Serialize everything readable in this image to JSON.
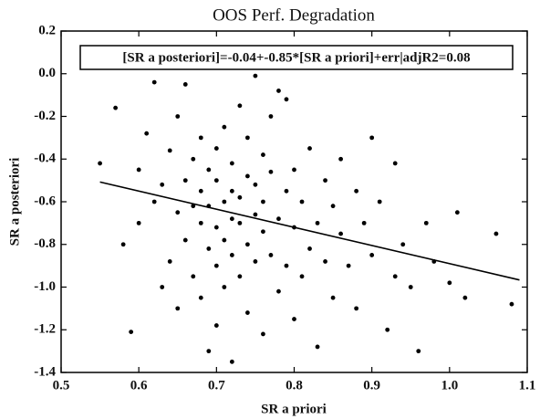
{
  "chart_data": {
    "type": "scatter",
    "title": "OOS Perf. Degradation",
    "xlabel": "SR a priori",
    "ylabel": "SR a posteriori",
    "annotation": "[SR a posteriori]=-0.04+-0.85*[SR a priori]+err|adjR2=0.08",
    "color": "#000000",
    "x": [
      0.55,
      0.57,
      0.58,
      0.59,
      0.6,
      0.6,
      0.61,
      0.62,
      0.62,
      0.63,
      0.63,
      0.64,
      0.64,
      0.65,
      0.65,
      0.65,
      0.66,
      0.66,
      0.66,
      0.67,
      0.67,
      0.67,
      0.68,
      0.68,
      0.68,
      0.68,
      0.69,
      0.69,
      0.69,
      0.69,
      0.7,
      0.7,
      0.7,
      0.7,
      0.7,
      0.71,
      0.71,
      0.71,
      0.71,
      0.72,
      0.72,
      0.72,
      0.72,
      0.72,
      0.73,
      0.73,
      0.73,
      0.73,
      0.74,
      0.74,
      0.74,
      0.74,
      0.75,
      0.75,
      0.75,
      0.75,
      0.76,
      0.76,
      0.76,
      0.76,
      0.77,
      0.77,
      0.77,
      0.78,
      0.78,
      0.78,
      0.79,
      0.79,
      0.79,
      0.8,
      0.8,
      0.8,
      0.81,
      0.81,
      0.82,
      0.82,
      0.83,
      0.83,
      0.84,
      0.84,
      0.85,
      0.85,
      0.86,
      0.86,
      0.87,
      0.88,
      0.88,
      0.89,
      0.9,
      0.9,
      0.91,
      0.92,
      0.93,
      0.93,
      0.94,
      0.95,
      0.96,
      0.97,
      0.98,
      1.0,
      1.01,
      1.02,
      1.06,
      1.08
    ],
    "values": [
      -0.42,
      -0.16,
      -0.8,
      -1.21,
      -0.45,
      -0.7,
      -0.28,
      -0.04,
      -0.6,
      -1.0,
      -0.52,
      -0.36,
      -0.88,
      -0.65,
      -0.2,
      -1.1,
      -0.5,
      -0.78,
      -0.05,
      -0.62,
      -0.95,
      -0.4,
      -0.7,
      -0.3,
      -1.05,
      -0.55,
      -0.82,
      -0.45,
      -1.3,
      -0.62,
      -0.72,
      -0.5,
      -0.9,
      -0.35,
      -1.18,
      -0.6,
      -0.78,
      -0.25,
      -1.0,
      -0.68,
      -0.42,
      -0.85,
      -0.55,
      -1.35,
      -0.7,
      -0.15,
      -0.95,
      -0.58,
      -0.8,
      -0.48,
      -1.12,
      -0.3,
      -0.66,
      -0.01,
      -0.88,
      -0.52,
      -0.74,
      -0.38,
      -1.22,
      -0.6,
      -0.85,
      -0.46,
      -0.2,
      -0.68,
      -1.02,
      -0.08,
      -0.55,
      -0.9,
      -0.12,
      -0.72,
      -0.45,
      -1.15,
      -0.6,
      -0.95,
      -0.82,
      -0.35,
      -0.7,
      -1.28,
      -0.5,
      -0.88,
      -0.62,
      -1.05,
      -0.75,
      -0.4,
      -0.9,
      -0.55,
      -1.1,
      -0.7,
      -0.85,
      -0.3,
      -0.6,
      -1.2,
      -0.42,
      -0.95,
      -0.8,
      -1.0,
      -1.3,
      -0.7,
      -0.88,
      -0.98,
      -0.65,
      -1.05,
      -0.75,
      -1.08
    ],
    "fit_line": {
      "x": [
        0.55,
        1.09
      ],
      "y": [
        -0.5075,
        -0.9665
      ]
    },
    "xlim": [
      0.5,
      1.1
    ],
    "ylim": [
      -1.4,
      0.2
    ],
    "xticks": [
      0.5,
      0.6,
      0.7,
      0.8,
      0.9,
      {
        "value": 1,
        "label": "1.0"
      },
      1.1
    ],
    "yticks": [
      -1.4,
      -1.2,
      {
        "value": -1,
        "label": "-1.0"
      },
      -0.8,
      -0.6,
      -0.4,
      -0.2,
      {
        "value": 0,
        "label": "0.0"
      },
      0.2
    ]
  }
}
